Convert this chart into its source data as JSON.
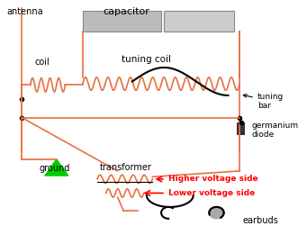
{
  "title": "",
  "bg_color": "#ffffff",
  "coil_color": "#e87040",
  "wire_color": "#e87040",
  "black_color": "#000000",
  "green_color": "#00cc00",
  "red_color": "#ff0000",
  "gray_color": "#c0c0c0",
  "labels": {
    "antenna": [
      0.04,
      0.97,
      "antenna"
    ],
    "coil": [
      0.14,
      0.72,
      "coil"
    ],
    "capacitor": [
      0.42,
      0.97,
      "capacitor"
    ],
    "tuning_coil": [
      0.38,
      0.78,
      "tuning coil"
    ],
    "tuning_bar": [
      0.88,
      0.58,
      "tuning\nbar"
    ],
    "germanium_diode": [
      0.88,
      0.4,
      "germanium\ndiode"
    ],
    "ground": [
      0.13,
      0.31,
      "ground"
    ],
    "transformer": [
      0.38,
      0.25,
      "transformer"
    ],
    "higher_voltage": [
      0.56,
      0.2,
      "Higher voltage side"
    ],
    "lower_voltage": [
      0.56,
      0.14,
      "Lower voltage side"
    ],
    "earbuds": [
      0.83,
      0.05,
      "earbuds"
    ]
  }
}
